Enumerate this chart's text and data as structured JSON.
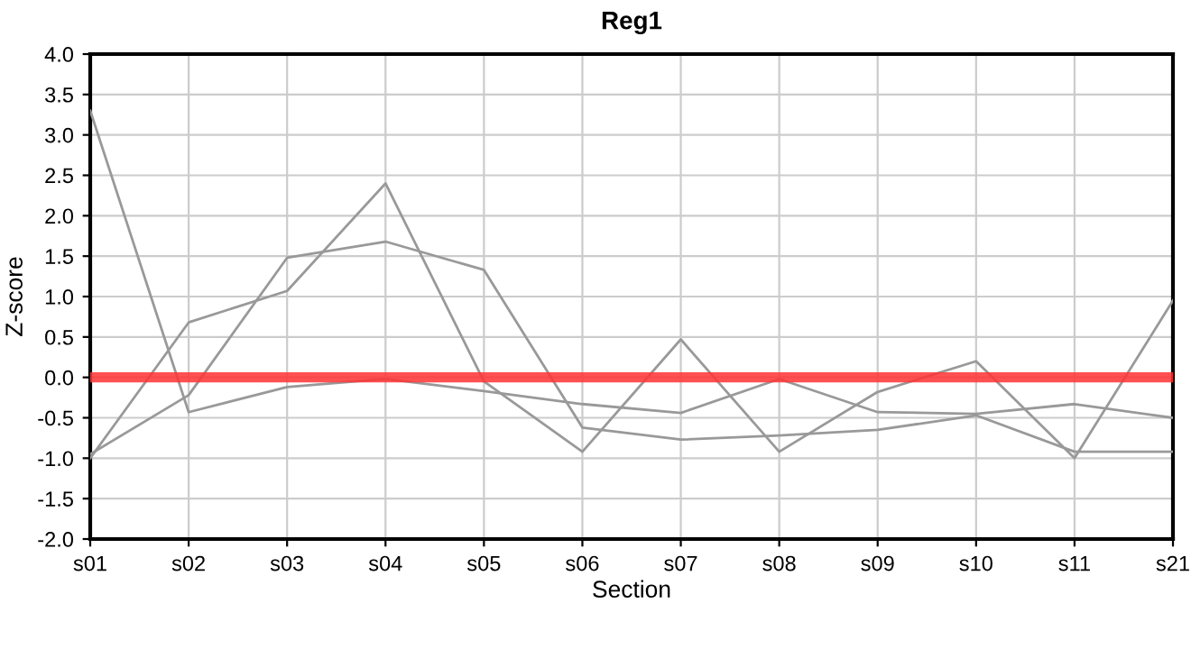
{
  "chart_data": {
    "type": "line",
    "title": "Reg1",
    "xlabel": "Section",
    "ylabel": "Z-score",
    "categories": [
      "s01",
      "s02",
      "s03",
      "s04",
      "s05",
      "s06",
      "s07",
      "s08",
      "s09",
      "s10",
      "s11",
      "s21"
    ],
    "series": [
      {
        "color": "#999999",
        "values": [
          3.3,
          -0.43,
          -0.12,
          -0.02,
          -0.17,
          -0.33,
          -0.44,
          -0.02,
          -0.43,
          -0.45,
          -0.33,
          -0.5
        ]
      },
      {
        "color": "#999999",
        "values": [
          -1.0,
          0.68,
          1.07,
          2.4,
          -0.05,
          -0.92,
          0.47,
          -0.92,
          -0.18,
          0.2,
          -1.0,
          0.95
        ]
      },
      {
        "color": "#999999",
        "values": [
          -0.95,
          -0.22,
          1.48,
          1.68,
          1.33,
          -0.62,
          -0.77,
          -0.72,
          -0.65,
          -0.47,
          -0.92,
          -0.92
        ]
      }
    ],
    "ylim": [
      -2.0,
      4.0
    ],
    "yticks": [
      {
        "value": -2.0,
        "label": "-2.0"
      },
      {
        "value": -1.5,
        "label": "-1.5"
      },
      {
        "value": -1.0,
        "label": "-1.0"
      },
      {
        "value": -0.5,
        "label": "-0.5"
      },
      {
        "value": 0.0,
        "label": "0.0"
      },
      {
        "value": 0.5,
        "label": "0.5"
      },
      {
        "value": 1.0,
        "label": "1.0"
      },
      {
        "value": 1.5,
        "label": "1.5"
      },
      {
        "value": 2.0,
        "label": "2.0"
      },
      {
        "value": 2.5,
        "label": "2.5"
      },
      {
        "value": 3.0,
        "label": "3.0"
      },
      {
        "value": 3.5,
        "label": "3.5"
      },
      {
        "value": 4.0,
        "label": "4.0"
      }
    ],
    "ref_lines": [
      {
        "axis": "y",
        "value": 0,
        "color": "#ff3333"
      }
    ],
    "grid": true,
    "line_style": "solid",
    "marker": "none"
  }
}
